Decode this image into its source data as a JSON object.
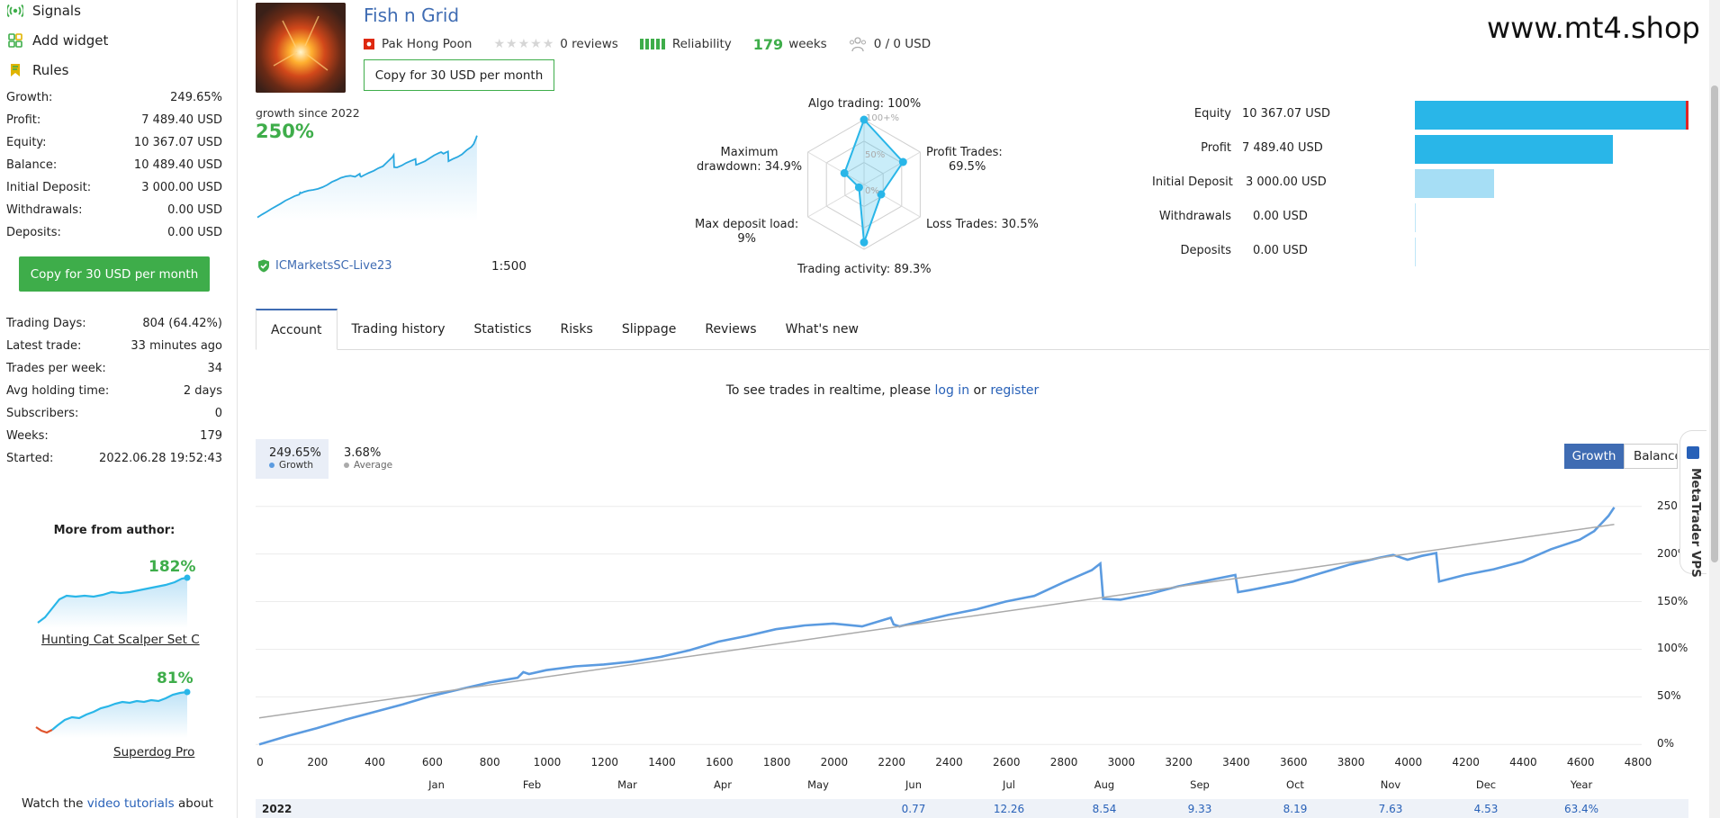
{
  "sidebar": {
    "nav": [
      {
        "label": "Signals",
        "icon": "signal-icon"
      },
      {
        "label": "Add widget",
        "icon": "widget-icon"
      },
      {
        "label": "Rules",
        "icon": "rules-icon"
      }
    ],
    "stats": [
      {
        "k": "Growth:",
        "v": "249.65%"
      },
      {
        "k": "Profit:",
        "v": "7 489.40 USD"
      },
      {
        "k": "Equity:",
        "v": "10 367.07 USD"
      },
      {
        "k": "Balance:",
        "v": "10 489.40 USD"
      },
      {
        "k": "Initial Deposit:",
        "v": "3 000.00 USD"
      },
      {
        "k": "Withdrawals:",
        "v": "0.00 USD"
      },
      {
        "k": "Deposits:",
        "v": "0.00 USD"
      }
    ],
    "copy_button": "Copy for 30 USD per month",
    "details": [
      {
        "k": "Trading Days:",
        "v": "804 (64.42%)"
      },
      {
        "k": "Latest trade:",
        "v": "33 minutes ago"
      },
      {
        "k": "Trades per week:",
        "v": "34"
      },
      {
        "k": "Avg holding time:",
        "v": "2 days"
      },
      {
        "k": "Subscribers:",
        "v": "0"
      },
      {
        "k": "Weeks:",
        "v": "179"
      },
      {
        "k": "Started:",
        "v": "2022.06.28 19:52:43"
      }
    ],
    "more_title": "More from author:",
    "more": [
      {
        "name": "Hunting Cat Scalper Set C",
        "pct": "182%"
      },
      {
        "name": "Superdog Pro",
        "pct": "81%"
      }
    ],
    "note_prefix": "Watch the ",
    "note_link": "video tutorials",
    "note_suffix": " about"
  },
  "header": {
    "title": "Fish n Grid",
    "author": "Pak Hong Poon",
    "reviews": "0 reviews",
    "reliability": "Reliability",
    "weeks_num": "179",
    "weeks_word": "weeks",
    "subscribers": "0 / 0 USD",
    "copy_button": "Copy for 30 USD per month",
    "watermark": "www.mt4.shop"
  },
  "summary": {
    "growth_label": "growth since 2022",
    "growth_value": "250%",
    "broker": "ICMarketsSC-Live23",
    "leverage": "1:500"
  },
  "radar": {
    "algo": "Algo trading: 100%",
    "profit_trades_1": "Profit Trades:",
    "profit_trades_2": "69.5%",
    "loss_trades": "Loss Trades: 30.5%",
    "activity": "Trading activity: 89.3%",
    "deposit_load_1": "Max deposit load:",
    "deposit_load_2": "9%",
    "drawdown_1": "Maximum",
    "drawdown_2": "drawdown: 34.9%",
    "ring_100": "100+%",
    "ring_50": "50%",
    "ring_0": "0%",
    "values": {
      "algo": 100,
      "profit": 69.5,
      "loss": 30.5,
      "activity": 89.3,
      "deposit_load": 9,
      "drawdown": 34.9
    }
  },
  "bars": [
    {
      "label": "Equity",
      "value": "10 367.07 USD",
      "amount": 10367.07
    },
    {
      "label": "Profit",
      "value": "7 489.40 USD",
      "amount": 7489.4
    },
    {
      "label": "Initial Deposit",
      "value": "3 000.00 USD",
      "amount": 3000
    },
    {
      "label": "Withdrawals",
      "value": "0.00 USD",
      "amount": 0
    },
    {
      "label": "Deposits",
      "value": "0.00 USD",
      "amount": 0
    }
  ],
  "tabs": [
    "Account",
    "Trading history",
    "Statistics",
    "Risks",
    "Slippage",
    "Reviews",
    "What's new"
  ],
  "realtime": {
    "prefix": "To see trades in realtime, please ",
    "login": "log in",
    "or": " or ",
    "register": "register"
  },
  "legend": {
    "growth_value": "249.65%",
    "growth_label": "Growth",
    "avg_value": "3.68%",
    "avg_label": "Average"
  },
  "chart_buttons": {
    "growth": "Growth",
    "balance": "Balance"
  },
  "vps": "MetaTrader VPS",
  "colors": {
    "green": "#3ead4a",
    "blue": "#3f6cb3",
    "chart_line": "#5b9be0",
    "bar": "#29b6e8",
    "bar_light": "#a6def5"
  },
  "chart_data": {
    "type": "line",
    "xlabel": "",
    "ylabel": "",
    "xlim": [
      0,
      4800
    ],
    "ylim": [
      -12,
      262
    ],
    "x_ticks": [
      "0",
      "200",
      "400",
      "600",
      "800",
      "1000",
      "1200",
      "1400",
      "1600",
      "1800",
      "2000",
      "2200",
      "2400",
      "2600",
      "2800",
      "3000",
      "3200",
      "3400",
      "3600",
      "3800",
      "4000",
      "4200",
      "4400",
      "4600",
      "4800"
    ],
    "y_ticks": [
      "0%",
      "50%",
      "100%",
      "150%",
      "200%",
      "250"
    ],
    "months": [
      "Jan",
      "Feb",
      "Mar",
      "Apr",
      "May",
      "Jun",
      "Jul",
      "Aug",
      "Sep",
      "Oct",
      "Nov",
      "Dec",
      "Year"
    ],
    "series": [
      {
        "name": "Growth",
        "x": [
          0,
          100,
          200,
          300,
          400,
          500,
          600,
          700,
          800,
          900,
          920,
          940,
          1000,
          1100,
          1200,
          1300,
          1400,
          1500,
          1600,
          1700,
          1800,
          1900,
          2000,
          2100,
          2200,
          2210,
          2230,
          2300,
          2400,
          2500,
          2600,
          2700,
          2800,
          2900,
          2930,
          2940,
          3000,
          3100,
          3200,
          3300,
          3400,
          3410,
          3450,
          3500,
          3600,
          3700,
          3800,
          3900,
          3950,
          4000,
          4050,
          4100,
          4110,
          4200,
          4300,
          4400,
          4500,
          4600,
          4650,
          4700,
          4720
        ],
        "values": [
          0,
          9,
          17,
          26,
          34,
          42,
          51,
          58,
          65,
          70,
          76,
          74,
          78,
          82,
          84,
          87,
          92,
          99,
          108,
          114,
          121,
          125,
          127,
          124,
          133,
          126,
          124,
          129,
          136,
          142,
          150,
          156,
          170,
          183,
          190,
          153,
          152,
          158,
          166,
          172,
          178,
          160,
          162,
          165,
          171,
          180,
          189,
          196,
          199,
          194,
          198,
          201,
          171,
          178,
          184,
          192,
          205,
          215,
          224,
          240,
          249
        ]
      },
      {
        "name": "Average",
        "x": [
          0,
          4720
        ],
        "values": [
          28,
          231
        ]
      }
    ],
    "year_row": {
      "year": "2022",
      "values": [
        "0.77",
        "12.26",
        "8.54",
        "9.33",
        "8.19",
        "7.63",
        "4.53",
        "63.4%"
      ]
    }
  }
}
